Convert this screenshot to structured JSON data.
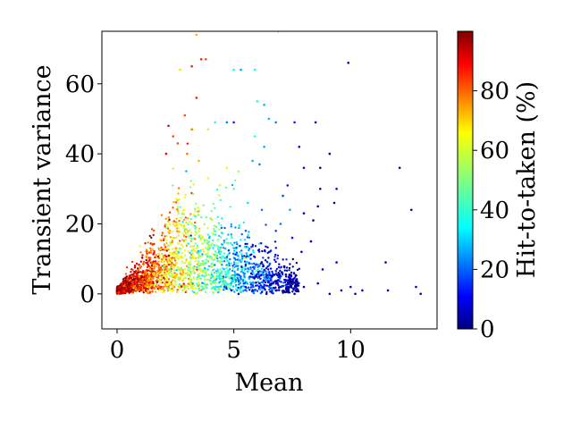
{
  "chart_data": {
    "type": "scatter",
    "title": "",
    "xlabel": "Mean",
    "ylabel": "Transient variance",
    "xlim": [
      -0.65,
      13.7
    ],
    "ylim": [
      -10,
      75
    ],
    "xticks": [
      0,
      5,
      10
    ],
    "yticks": [
      0,
      20,
      40,
      60
    ],
    "grid": false,
    "colormap": "jet",
    "colorbar": {
      "label": "Hit-to-taken (%)",
      "range": [
        0,
        100
      ],
      "ticks": [
        0,
        20,
        40,
        60,
        80
      ]
    },
    "series": [
      {
        "points_xyc": [
          [
            6.9,
            75,
            40
          ],
          [
            3.4,
            74,
            70
          ],
          [
            3.6,
            67,
            85
          ],
          [
            3.8,
            67,
            80
          ],
          [
            3.2,
            65,
            85
          ],
          [
            2.7,
            64,
            65
          ],
          [
            5.0,
            64,
            40
          ],
          [
            5.3,
            64,
            30
          ],
          [
            5.9,
            64,
            40
          ],
          [
            9.9,
            66,
            5
          ],
          [
            3.4,
            56,
            85
          ],
          [
            6.0,
            55,
            40
          ],
          [
            6.3,
            54,
            30
          ],
          [
            4.2,
            49,
            40
          ],
          [
            4.7,
            49,
            25
          ],
          [
            5.0,
            49,
            15
          ],
          [
            8.5,
            49,
            5
          ],
          [
            6.5,
            50,
            30
          ],
          [
            6.8,
            49,
            25
          ],
          [
            7.6,
            49,
            15
          ],
          [
            2.9,
            51,
            80
          ],
          [
            2.2,
            48,
            90
          ],
          [
            2.4,
            45,
            80
          ],
          [
            3.2,
            47,
            75
          ],
          [
            3.9,
            47,
            55
          ],
          [
            5.9,
            45,
            40
          ],
          [
            6.3,
            42,
            30
          ],
          [
            7.8,
            42,
            10
          ],
          [
            9.1,
            40,
            5
          ],
          [
            8.0,
            36,
            10
          ],
          [
            8.7,
            36,
            5
          ],
          [
            12.1,
            36,
            5
          ],
          [
            5.8,
            38,
            30
          ],
          [
            6.1,
            37,
            25
          ],
          [
            4.7,
            36,
            60
          ],
          [
            5.2,
            35,
            55
          ],
          [
            8.7,
            30,
            5
          ],
          [
            9.4,
            30,
            10
          ],
          [
            7.3,
            31,
            15
          ],
          [
            7.1,
            28,
            20
          ],
          [
            9.3,
            26,
            5
          ],
          [
            8.6,
            25,
            5
          ],
          [
            12.6,
            24,
            5
          ],
          [
            7.4,
            24,
            30
          ],
          [
            8.0,
            23,
            10
          ],
          [
            6.2,
            24,
            25
          ],
          [
            5.6,
            26,
            35
          ],
          [
            5.0,
            30,
            45
          ],
          [
            4.4,
            31,
            55
          ],
          [
            3.9,
            33,
            60
          ],
          [
            3.5,
            38,
            70
          ],
          [
            3.0,
            40,
            75
          ],
          [
            2.6,
            43,
            80
          ],
          [
            2.1,
            40,
            88
          ],
          [
            8.4,
            21,
            5
          ],
          [
            7.0,
            20,
            25
          ],
          [
            6.8,
            18,
            20
          ],
          [
            7.5,
            16,
            15
          ],
          [
            8.3,
            15,
            10
          ],
          [
            7.9,
            12,
            8
          ],
          [
            11.5,
            9,
            5
          ],
          [
            9.4,
            9,
            10
          ],
          [
            8.8,
            7,
            8
          ],
          [
            12.8,
            2,
            5
          ],
          [
            13.0,
            0,
            5
          ],
          [
            11.6,
            1,
            5
          ],
          [
            10.5,
            1,
            5
          ],
          [
            10.2,
            0,
            5
          ],
          [
            10.0,
            2,
            10
          ],
          [
            9.6,
            1,
            5
          ],
          [
            9.1,
            0,
            5
          ],
          [
            8.6,
            3,
            5
          ],
          [
            8.0,
            2,
            5
          ],
          [
            7.6,
            0,
            5
          ],
          [
            7.2,
            4,
            10
          ],
          [
            6.8,
            1,
            5
          ],
          [
            6.4,
            0,
            5
          ],
          [
            6.1,
            3,
            8
          ],
          [
            5.8,
            1,
            5
          ],
          [
            5.5,
            2,
            10
          ],
          [
            5.2,
            0,
            12
          ],
          [
            4.9,
            1,
            15
          ],
          [
            4.6,
            2,
            20
          ]
        ]
      }
    ]
  }
}
